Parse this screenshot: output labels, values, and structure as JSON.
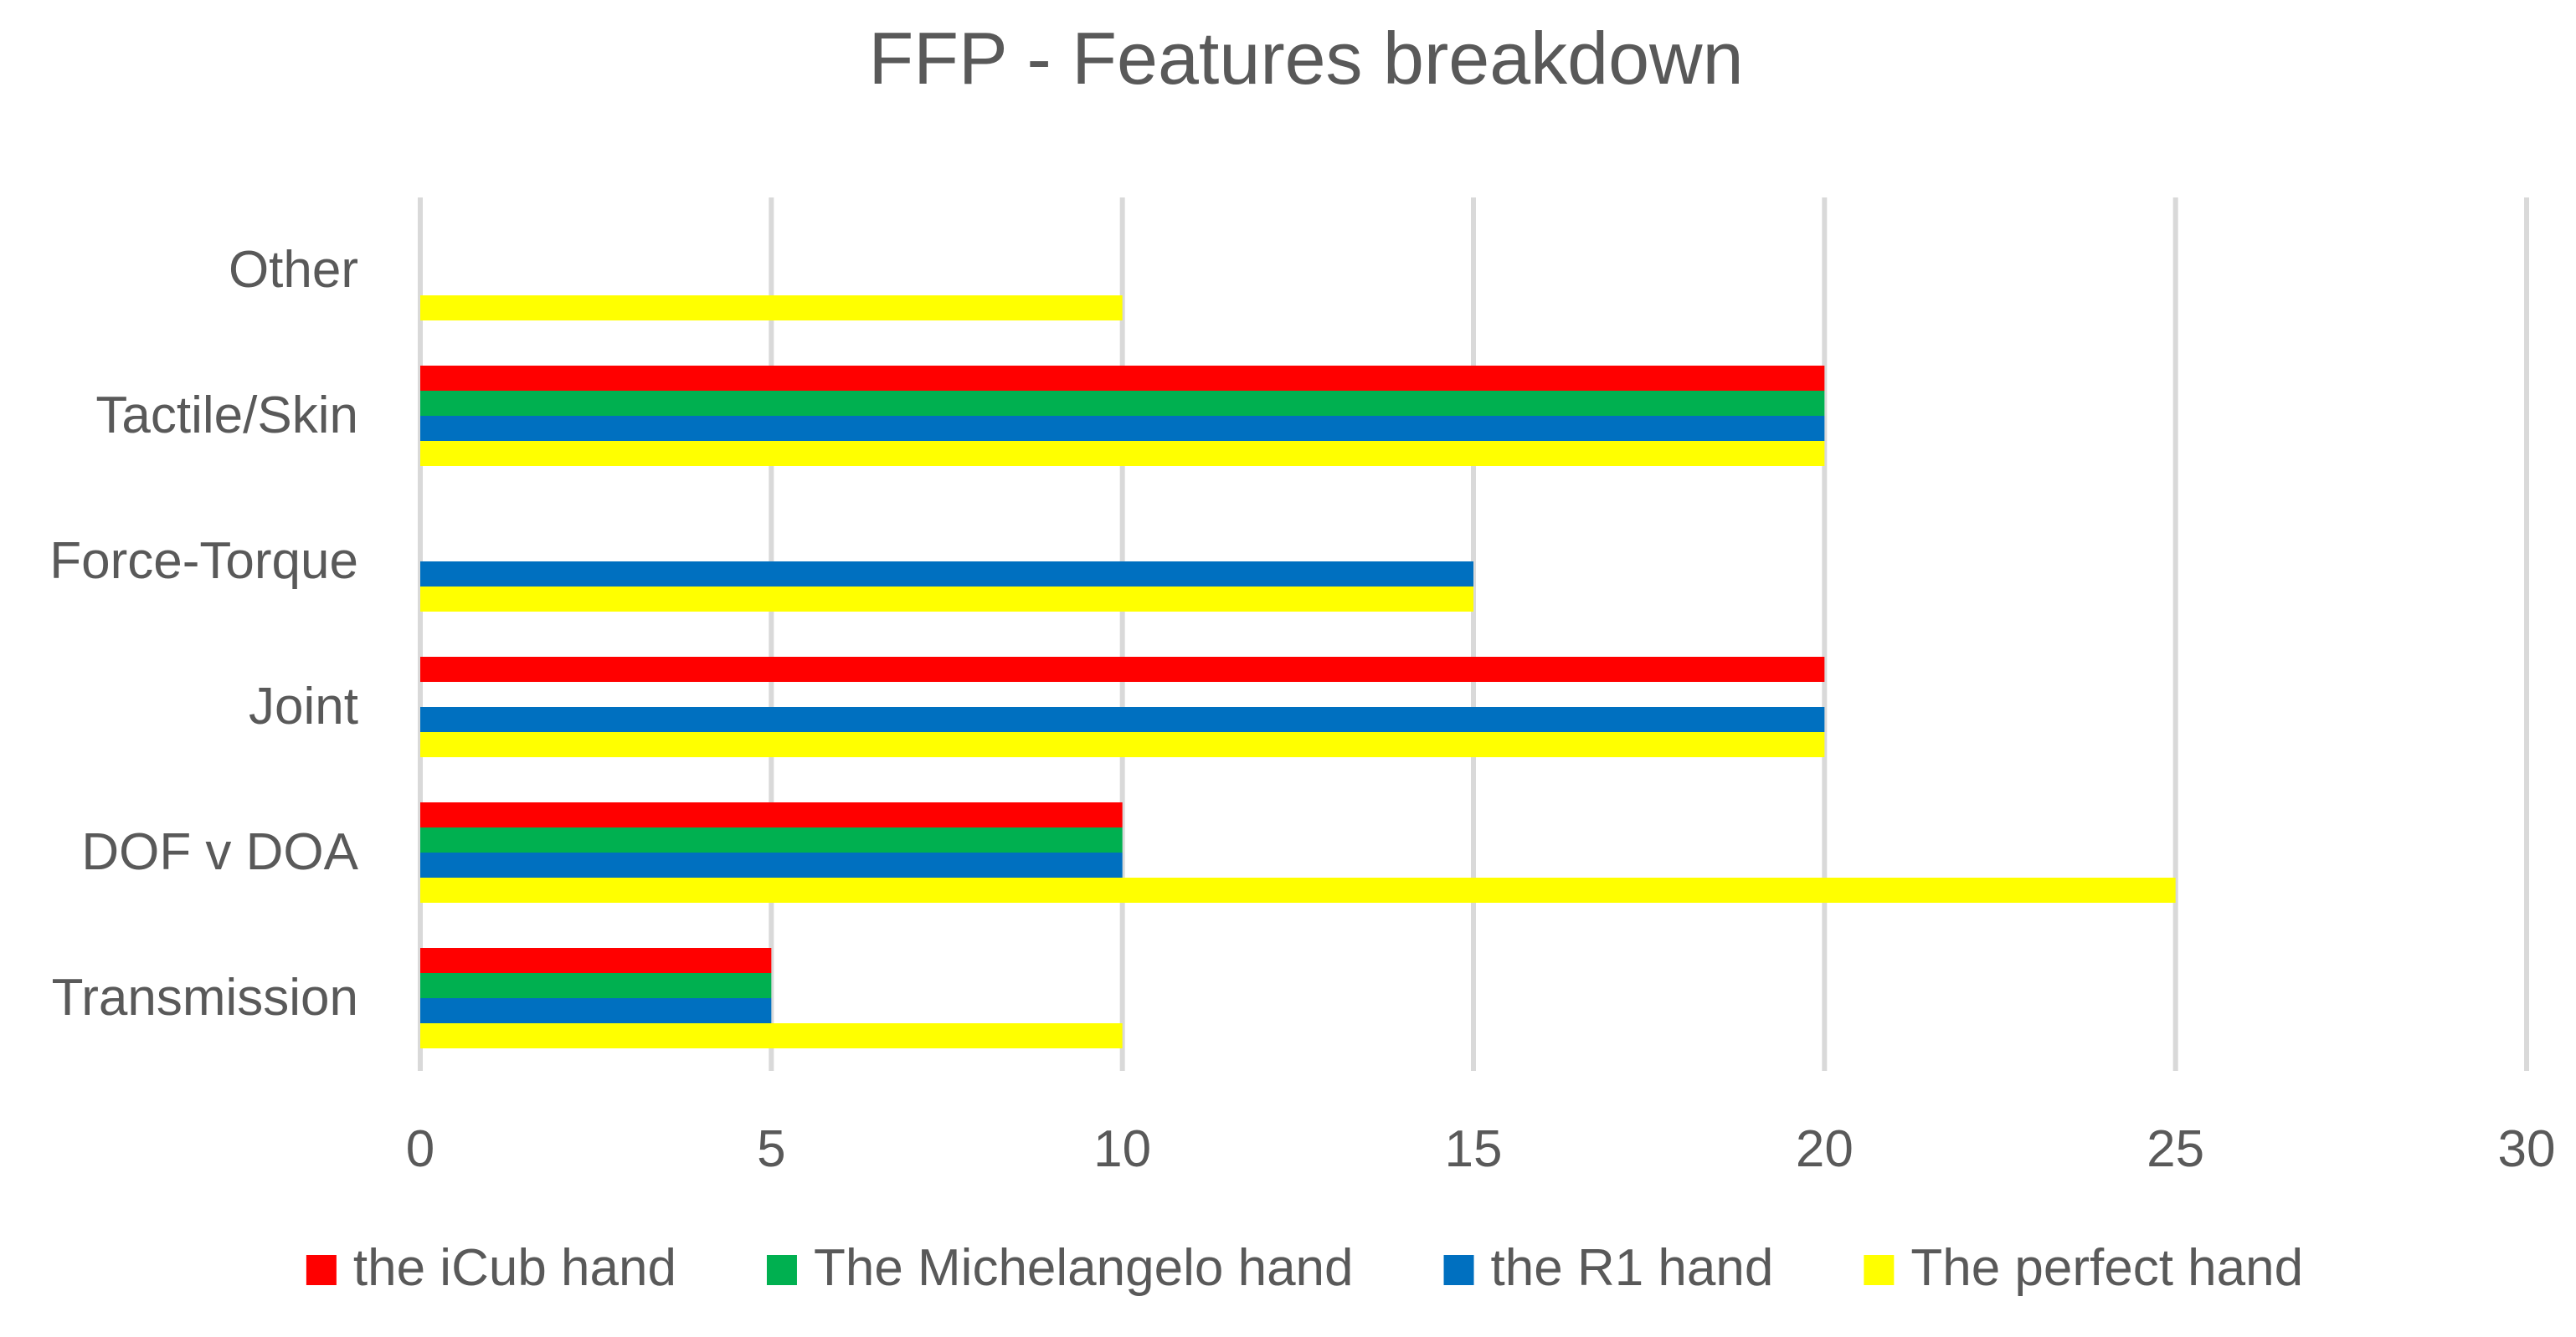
{
  "chart_data": {
    "type": "bar",
    "orientation": "horizontal",
    "title": "FFP - Features breakdown",
    "xlabel": "",
    "ylabel": "",
    "categories": [
      "Transmission",
      "DOF v DOA",
      "Joint",
      "Force-Torque",
      "Tactile/Skin",
      "Other"
    ],
    "series": [
      {
        "name": "the iCub hand",
        "color": "#ff0000",
        "values": [
          5,
          10,
          20,
          0,
          20,
          0
        ]
      },
      {
        "name": "The Michelangelo hand",
        "color": "#00b050",
        "values": [
          5,
          10,
          0,
          0,
          20,
          0
        ]
      },
      {
        "name": "the R1 hand",
        "color": "#0070c0",
        "values": [
          5,
          10,
          20,
          15,
          20,
          0
        ]
      },
      {
        "name": "The perfect hand",
        "color": "#ffff00",
        "values": [
          10,
          25,
          20,
          15,
          20,
          10
        ]
      }
    ],
    "xlim": [
      0,
      30
    ],
    "xticks": [
      "0",
      "5",
      "10",
      "15",
      "20",
      "25",
      "30"
    ],
    "grid": true,
    "legend_position": "bottom"
  }
}
